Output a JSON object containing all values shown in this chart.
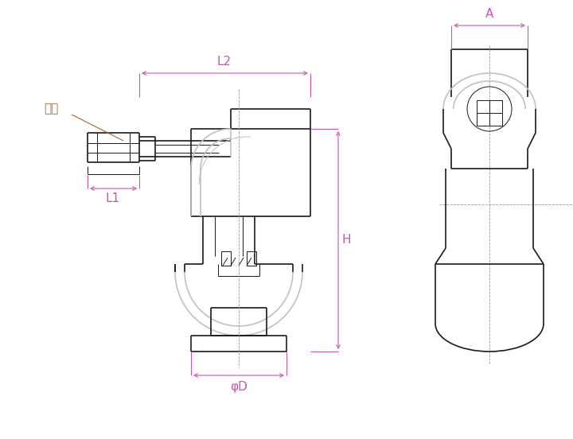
{
  "bg_color": "#ffffff",
  "line_color": "#1a1a1a",
  "gray_color": "#c0c0c0",
  "dim_color": "#cc55aa",
  "annotation_color": "#aa6633",
  "fig_width": 7.2,
  "fig_height": 5.52,
  "dpi": 100,
  "labels": {
    "L1": "L1",
    "L2": "L2",
    "H": "H",
    "phiD": "φD",
    "A": "A",
    "neji": "ねじ"
  }
}
